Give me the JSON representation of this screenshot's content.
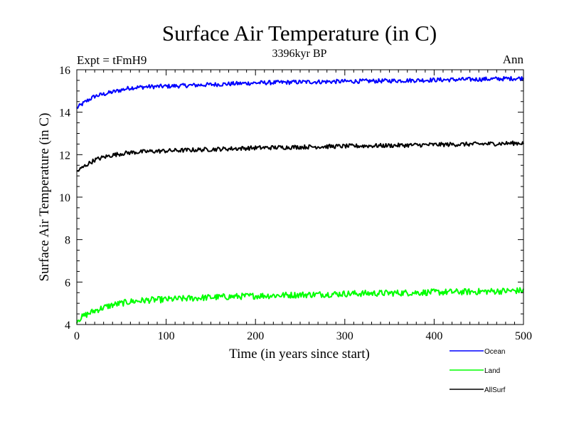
{
  "chart_data": {
    "type": "line",
    "title": "Surface Air Temperature (in C)",
    "subtitle": "3396kyr BP",
    "experiment_label": "Expt = tFmH9",
    "season_label": "Ann",
    "xlabel": "Time (in years since start)",
    "ylabel": "Surface Air Temperature (in C)",
    "xlim": [
      0,
      500
    ],
    "ylim": [
      4,
      16
    ],
    "x_ticks": [
      0,
      100,
      200,
      300,
      400,
      500
    ],
    "y_ticks": [
      4,
      6,
      8,
      10,
      12,
      14,
      16
    ],
    "x_minor_step": 10,
    "y_minor_step": 0.5,
    "grid": false,
    "legend_position": "bottom-right",
    "x_sample": [
      0,
      10,
      20,
      30,
      40,
      50,
      60,
      80,
      100,
      150,
      200,
      250,
      300,
      350,
      400,
      450,
      500
    ],
    "series": [
      {
        "name": "Ocean",
        "color": "#0000ff",
        "values": [
          14.2,
          14.5,
          14.75,
          14.85,
          14.95,
          15.05,
          15.15,
          15.2,
          15.22,
          15.3,
          15.38,
          15.42,
          15.45,
          15.48,
          15.52,
          15.55,
          15.6
        ],
        "noise": 0.1
      },
      {
        "name": "Land",
        "color": "#00ff00",
        "values": [
          4.2,
          4.45,
          4.65,
          4.8,
          4.92,
          5.0,
          5.08,
          5.15,
          5.18,
          5.28,
          5.35,
          5.4,
          5.45,
          5.48,
          5.52,
          5.55,
          5.6
        ],
        "noise": 0.15
      },
      {
        "name": "AllSurf",
        "color": "#000000",
        "values": [
          11.2,
          11.5,
          11.75,
          11.88,
          11.98,
          12.05,
          12.1,
          12.15,
          12.18,
          12.25,
          12.32,
          12.36,
          12.4,
          12.43,
          12.47,
          12.5,
          12.55
        ],
        "noise": 0.1
      }
    ]
  }
}
